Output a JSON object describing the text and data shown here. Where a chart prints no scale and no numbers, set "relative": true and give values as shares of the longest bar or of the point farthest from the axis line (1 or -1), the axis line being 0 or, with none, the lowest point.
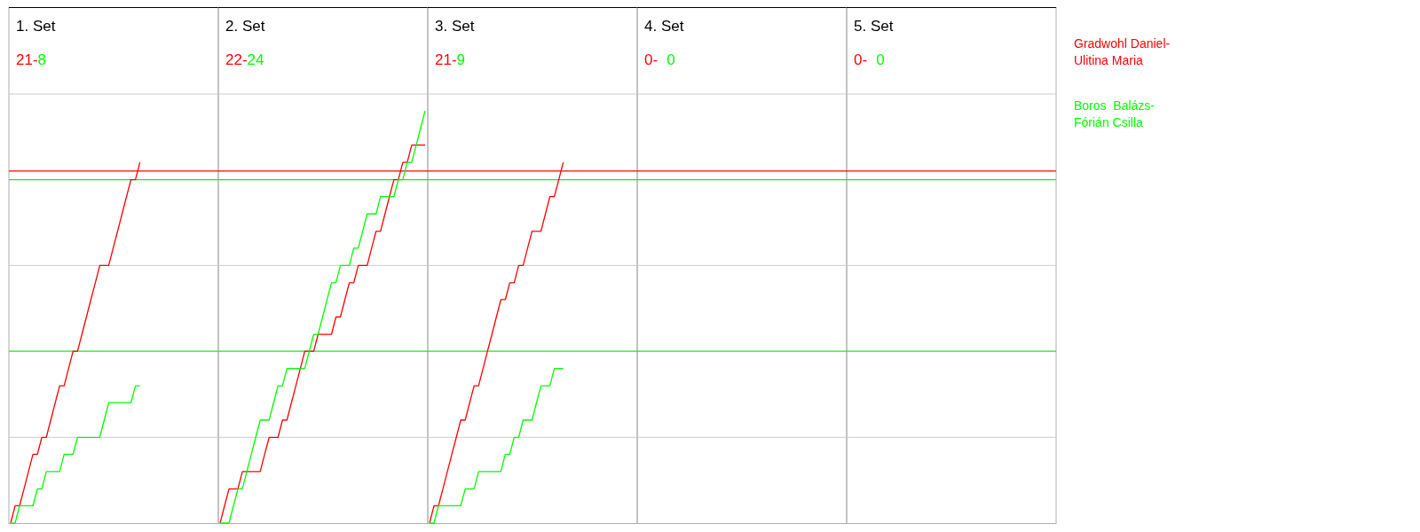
{
  "chart_data": {
    "type": "line",
    "relative": true,
    "annotations": [
      "1. Set",
      "21-",
      "8",
      "2. Set",
      "22-",
      "24",
      "3. Set",
      "21-",
      "9",
      "4. Set",
      "0-",
      "0",
      "5. Set",
      "0-",
      "0"
    ],
    "categories": [
      null,
      null,
      null,
      null,
      null,
      null,
      null,
      null,
      null,
      null,
      null,
      null,
      null,
      null,
      null,
      null,
      null,
      null,
      null,
      null,
      null,
      null,
      null,
      null,
      null,
      null,
      null,
      null,
      null,
      null,
      null,
      null,
      null,
      null,
      null,
      null,
      null,
      null,
      null,
      null,
      null,
      null,
      null,
      null,
      null,
      null,
      null,
      null,
      null,
      null,
      null,
      null,
      null,
      null,
      null,
      null,
      null,
      null,
      null,
      null,
      null,
      null,
      null,
      null,
      null,
      null,
      null,
      null,
      null,
      null,
      null,
      null,
      null,
      null,
      null,
      null,
      null,
      null,
      null,
      null,
      null,
      null,
      null,
      null,
      null,
      null,
      null,
      null,
      null,
      null,
      null,
      null,
      null,
      null,
      null,
      null,
      null,
      null,
      null,
      null,
      null,
      null,
      null,
      null,
      null,
      null,
      null,
      null,
      null,
      null,
      null,
      null,
      null,
      null,
      null,
      null,
      null,
      null,
      null,
      null,
      null,
      null,
      null,
      null,
      null,
      null,
      null,
      null,
      null,
      null,
      null,
      null,
      null,
      null,
      null,
      null,
      null,
      null,
      null,
      null,
      null,
      null,
      null,
      null,
      null,
      null,
      null,
      null,
      null,
      null,
      null,
      null,
      null,
      null,
      null,
      null,
      null,
      null,
      null,
      null,
      null,
      null,
      null,
      null,
      null,
      null,
      null,
      null,
      null,
      null,
      null,
      null,
      null,
      null,
      null,
      null,
      null,
      null,
      null,
      null,
      null,
      null,
      null,
      null,
      null,
      null,
      null,
      null,
      null,
      null,
      null,
      null,
      null,
      null,
      null,
      null,
      null,
      null,
      null,
      null,
      null,
      null,
      null,
      null,
      null,
      null,
      null,
      null,
      null,
      null,
      null,
      null,
      null,
      null,
      null,
      null,
      null,
      null,
      null,
      null,
      null,
      null,
      null,
      null,
      null,
      null,
      null,
      null,
      null,
      null,
      null,
      null,
      null,
      null,
      null
    ],
    "ref_lines": [
      {
        "axis": "y",
        "value": 0.208,
        "color": "#cccccc"
      },
      {
        "axis": "y",
        "value": 0.625,
        "color": "#cccccc"
      },
      {
        "axis": "y",
        "value": 0.854,
        "color": "#ff0000"
      },
      {
        "axis": "y",
        "value": 0.833,
        "color": "#00ff00"
      },
      {
        "axis": "y",
        "value": 0.417,
        "color": "#00ff00"
      }
    ],
    "series": [
      {
        "name": "Gradwohl Daniel-Ulitina Maria",
        "color": "#ff0000",
        "values": [
          0,
          0.042,
          0.042,
          0.083,
          0.125,
          0.167,
          0.167,
          0.208,
          0.208,
          0.25,
          0.292,
          0.333,
          0.333,
          0.375,
          0.417,
          0.417,
          0.458,
          0.5,
          0.542,
          0.583,
          0.625,
          0.625,
          0.625,
          0.667,
          0.708,
          0.75,
          0.792,
          0.833,
          0.833,
          0.875,
          null,
          null,
          null,
          null,
          null,
          null,
          null,
          null,
          null,
          null,
          null,
          null,
          null,
          null,
          null,
          null,
          null,
          null,
          null,
          null,
          null,
          null,
          null,
          null,
          null,
          null,
          null,
          null,
          null,
          null,
          null,
          null,
          null,
          null,
          null,
          null,
          null,
          null,
          null,
          null,
          null,
          null,
          null,
          null,
          null,
          null,
          null,
          null,
          null,
          null,
          null,
          null,
          null,
          null,
          null,
          null,
          null,
          null,
          null,
          null,
          null,
          null,
          null,
          null,
          null,
          null,
          null,
          null,
          null,
          null,
          null,
          null,
          null,
          null,
          null,
          null,
          null,
          null,
          null,
          null,
          null,
          null,
          null,
          null,
          null,
          null,
          null,
          null,
          null,
          null,
          null,
          null,
          null,
          null,
          null,
          null,
          null,
          null,
          null,
          null,
          null,
          null,
          null,
          null,
          null,
          null,
          null,
          null,
          null,
          null,
          null,
          null,
          null,
          null,
          null,
          null,
          null,
          null,
          null,
          null,
          null,
          null,
          null,
          null,
          null,
          null,
          null,
          null,
          null,
          null,
          null,
          null,
          null,
          null,
          null,
          null,
          null,
          null,
          null,
          null,
          null,
          null,
          null,
          null,
          null,
          null,
          null,
          null,
          null,
          null,
          null,
          null,
          null,
          null,
          null,
          null,
          null,
          null,
          null,
          null,
          null,
          null,
          null,
          null,
          null,
          null,
          null,
          null,
          null,
          null,
          null,
          null,
          null,
          null,
          null,
          null,
          null,
          null,
          null,
          null,
          null,
          null,
          null,
          null,
          null,
          null,
          null,
          null,
          null,
          null,
          null,
          null,
          null,
          null,
          null,
          null,
          null,
          null,
          null,
          null,
          null,
          null,
          null,
          null,
          null
        ]
      },
      {
        "name": "Boros  Balázs-Fórián Csilla",
        "color": "#00ff00",
        "values": [
          0,
          0,
          0.042,
          0.042,
          0.042,
          0.042,
          0.083,
          0.083,
          0.125,
          0.125,
          0.125,
          0.125,
          0.167,
          0.167,
          0.167,
          0.208,
          0.208,
          0.208,
          0.208,
          0.208,
          0.208,
          0.25,
          0.292,
          0.292,
          0.292,
          0.292,
          0.292,
          0.292,
          0.333,
          0.333,
          null,
          null,
          null,
          null,
          null,
          null,
          null,
          null,
          null,
          null,
          null,
          null,
          null,
          null,
          null,
          null,
          null,
          null,
          null,
          null,
          null,
          null,
          null,
          null,
          null,
          null,
          null,
          null,
          null,
          null,
          null,
          null,
          null,
          null,
          null,
          null,
          null,
          null,
          null,
          null,
          null,
          null,
          null,
          null,
          null,
          null,
          null,
          null,
          null,
          null,
          null,
          null,
          null,
          null,
          null,
          null,
          null,
          null,
          null,
          null,
          null,
          null,
          null,
          null,
          null,
          null,
          null,
          null,
          null,
          null,
          null,
          null,
          null,
          null,
          null,
          null,
          null,
          null,
          null,
          null,
          null,
          null,
          null,
          null,
          null,
          null,
          null,
          null,
          null,
          null,
          null,
          null,
          null,
          null,
          null,
          null,
          null,
          null,
          null,
          null,
          null,
          null,
          null,
          null,
          null,
          null,
          null,
          null,
          null,
          null,
          null,
          null,
          null,
          null,
          null,
          null,
          null,
          null,
          null,
          null,
          null,
          null,
          null,
          null,
          null,
          null,
          null,
          null,
          null,
          null,
          null,
          null,
          null,
          null,
          null,
          null,
          null,
          null,
          null,
          null,
          null,
          null,
          null,
          null,
          null,
          null,
          null,
          null,
          null,
          null,
          null,
          null,
          null,
          null,
          null,
          null,
          null,
          null,
          null,
          null,
          null,
          null,
          null,
          null,
          null,
          null,
          null,
          null,
          null,
          null,
          null,
          null,
          null,
          null,
          null,
          null,
          null,
          null,
          null,
          null,
          null,
          null,
          null,
          null,
          null,
          null,
          null,
          null,
          null,
          null,
          null,
          null,
          null,
          null,
          null,
          null,
          null,
          null,
          null,
          null,
          null,
          null,
          null,
          null,
          null
        ]
      },
      {
        "color": "#ff0000",
        "values": [
          null,
          null,
          null,
          null,
          null,
          null,
          null,
          null,
          null,
          null,
          null,
          null,
          null,
          null,
          null,
          null,
          null,
          null,
          null,
          null,
          null,
          null,
          null,
          null,
          null,
          null,
          null,
          null,
          null,
          null,
          null,
          null,
          null,
          null,
          null,
          null,
          null,
          null,
          null,
          null,
          null,
          null,
          null,
          null,
          null,
          null,
          null,
          0,
          0.042,
          0.083,
          0.083,
          0.083,
          0.125,
          0.125,
          0.125,
          0.125,
          0.125,
          0.167,
          0.208,
          0.208,
          0.208,
          0.25,
          0.25,
          0.292,
          0.333,
          0.375,
          0.417,
          0.417,
          0.417,
          0.458,
          0.458,
          0.458,
          0.458,
          0.5,
          0.5,
          0.542,
          0.583,
          0.583,
          0.625,
          0.625,
          0.625,
          0.667,
          0.708,
          0.708,
          0.75,
          0.792,
          0.833,
          0.833,
          0.875,
          0.875,
          0.917,
          0.917,
          0.917,
          0.917,
          null,
          null,
          null,
          null,
          null,
          null,
          null,
          null,
          null,
          null,
          null,
          null,
          null,
          null,
          null,
          null,
          null,
          null,
          null,
          null,
          null,
          null,
          null,
          null,
          null,
          null,
          null,
          null,
          null,
          null,
          null,
          null,
          null,
          null,
          null,
          null,
          null,
          null,
          null,
          null,
          null,
          null,
          null,
          null,
          null,
          null,
          null,
          null,
          null,
          null,
          null,
          null,
          null,
          null,
          null,
          null,
          null,
          null,
          null,
          null,
          null,
          null,
          null,
          null,
          null,
          null,
          null,
          null,
          null,
          null,
          null,
          null,
          null,
          null,
          null,
          null,
          null,
          null,
          null,
          null,
          null,
          null,
          null,
          null,
          null,
          null,
          null,
          null,
          null,
          null,
          null,
          null,
          null,
          null,
          null,
          null,
          null,
          null,
          null,
          null,
          null,
          null,
          null,
          null,
          null,
          null,
          null,
          null,
          null,
          null,
          null,
          null,
          null,
          null,
          null,
          null,
          null,
          null,
          null,
          null,
          null,
          null,
          null,
          null,
          null,
          null,
          null,
          null,
          null,
          null,
          null,
          null,
          null,
          null,
          null,
          null,
          null,
          null,
          null,
          null,
          null
        ]
      },
      {
        "color": "#00ff00",
        "values": [
          null,
          null,
          null,
          null,
          null,
          null,
          null,
          null,
          null,
          null,
          null,
          null,
          null,
          null,
          null,
          null,
          null,
          null,
          null,
          null,
          null,
          null,
          null,
          null,
          null,
          null,
          null,
          null,
          null,
          null,
          null,
          null,
          null,
          null,
          null,
          null,
          null,
          null,
          null,
          null,
          null,
          null,
          null,
          null,
          null,
          null,
          null,
          0,
          0,
          0,
          0.042,
          0.083,
          0.083,
          0.125,
          0.167,
          0.208,
          0.25,
          0.25,
          0.25,
          0.292,
          0.333,
          0.333,
          0.375,
          0.375,
          0.375,
          0.375,
          0.375,
          0.417,
          0.458,
          0.458,
          0.5,
          0.542,
          0.583,
          0.583,
          0.625,
          0.625,
          0.625,
          0.667,
          0.667,
          0.708,
          0.75,
          0.75,
          0.75,
          0.792,
          0.792,
          0.792,
          0.792,
          0.833,
          0.833,
          0.875,
          0.875,
          0.917,
          0.958,
          1,
          null,
          null,
          null,
          null,
          null,
          null,
          null,
          null,
          null,
          null,
          null,
          null,
          null,
          null,
          null,
          null,
          null,
          null,
          null,
          null,
          null,
          null,
          null,
          null,
          null,
          null,
          null,
          null,
          null,
          null,
          null,
          null,
          null,
          null,
          null,
          null,
          null,
          null,
          null,
          null,
          null,
          null,
          null,
          null,
          null,
          null,
          null,
          null,
          null,
          null,
          null,
          null,
          null,
          null,
          null,
          null,
          null,
          null,
          null,
          null,
          null,
          null,
          null,
          null,
          null,
          null,
          null,
          null,
          null,
          null,
          null,
          null,
          null,
          null,
          null,
          null,
          null,
          null,
          null,
          null,
          null,
          null,
          null,
          null,
          null,
          null,
          null,
          null,
          null,
          null,
          null,
          null,
          null,
          null,
          null,
          null,
          null,
          null,
          null,
          null,
          null,
          null,
          null,
          null,
          null,
          null,
          null,
          null,
          null,
          null,
          null,
          null,
          null,
          null,
          null,
          null,
          null,
          null,
          null,
          null,
          null,
          null,
          null,
          null,
          null,
          null,
          null,
          null,
          null,
          null,
          null,
          null,
          null,
          null,
          null,
          null,
          null,
          null,
          null,
          null,
          null
        ]
      },
      {
        "color": "#ff0000",
        "values": [
          null,
          null,
          null,
          null,
          null,
          null,
          null,
          null,
          null,
          null,
          null,
          null,
          null,
          null,
          null,
          null,
          null,
          null,
          null,
          null,
          null,
          null,
          null,
          null,
          null,
          null,
          null,
          null,
          null,
          null,
          null,
          null,
          null,
          null,
          null,
          null,
          null,
          null,
          null,
          null,
          null,
          null,
          null,
          null,
          null,
          null,
          null,
          null,
          null,
          null,
          null,
          null,
          null,
          null,
          null,
          null,
          null,
          null,
          null,
          null,
          null,
          null,
          null,
          null,
          null,
          null,
          null,
          null,
          null,
          null,
          null,
          null,
          null,
          null,
          null,
          null,
          null,
          null,
          null,
          null,
          null,
          null,
          null,
          null,
          null,
          null,
          null,
          null,
          null,
          null,
          null,
          null,
          null,
          null,
          0,
          0.042,
          0.042,
          0.083,
          0.125,
          0.167,
          0.208,
          0.25,
          0.25,
          0.292,
          0.333,
          0.333,
          0.375,
          0.417,
          0.458,
          0.5,
          0.542,
          0.542,
          0.583,
          0.583,
          0.625,
          0.625,
          0.667,
          0.708,
          0.708,
          0.708,
          0.75,
          0.792,
          0.792,
          0.833,
          0.875,
          null,
          null,
          null,
          null,
          null,
          null,
          null,
          null,
          null,
          null,
          null,
          null,
          null,
          null,
          null,
          null,
          null,
          null,
          null,
          null,
          null,
          null,
          null,
          null,
          null,
          null,
          null,
          null,
          null,
          null,
          null,
          null,
          null,
          null,
          null,
          null,
          null,
          null,
          null,
          null,
          null,
          null,
          null,
          null,
          null,
          null,
          null,
          null,
          null,
          null,
          null,
          null,
          null,
          null,
          null,
          null,
          null,
          null,
          null,
          null,
          null,
          null,
          null,
          null,
          null,
          null,
          null,
          null,
          null,
          null,
          null,
          null,
          null,
          null,
          null,
          null,
          null,
          null,
          null,
          null,
          null,
          null,
          null,
          null,
          null,
          null,
          null,
          null,
          null,
          null,
          null,
          null,
          null,
          null,
          null,
          null,
          null,
          null,
          null,
          null,
          null,
          null,
          null,
          null,
          null,
          null,
          null,
          null,
          null,
          null
        ]
      },
      {
        "color": "#00ff00",
        "values": [
          null,
          null,
          null,
          null,
          null,
          null,
          null,
          null,
          null,
          null,
          null,
          null,
          null,
          null,
          null,
          null,
          null,
          null,
          null,
          null,
          null,
          null,
          null,
          null,
          null,
          null,
          null,
          null,
          null,
          null,
          null,
          null,
          null,
          null,
          null,
          null,
          null,
          null,
          null,
          null,
          null,
          null,
          null,
          null,
          null,
          null,
          null,
          null,
          null,
          null,
          null,
          null,
          null,
          null,
          null,
          null,
          null,
          null,
          null,
          null,
          null,
          null,
          null,
          null,
          null,
          null,
          null,
          null,
          null,
          null,
          null,
          null,
          null,
          null,
          null,
          null,
          null,
          null,
          null,
          null,
          null,
          null,
          null,
          null,
          null,
          null,
          null,
          null,
          null,
          null,
          null,
          null,
          null,
          null,
          0,
          0,
          0.042,
          0.042,
          0.042,
          0.042,
          0.042,
          0.042,
          0.083,
          0.083,
          0.083,
          0.125,
          0.125,
          0.125,
          0.125,
          0.125,
          0.125,
          0.167,
          0.167,
          0.208,
          0.208,
          0.25,
          0.25,
          0.25,
          0.292,
          0.333,
          0.333,
          0.333,
          0.375,
          0.375,
          0.375,
          null,
          null,
          null,
          null,
          null,
          null,
          null,
          null,
          null,
          null,
          null,
          null,
          null,
          null,
          null,
          null,
          null,
          null,
          null,
          null,
          null,
          null,
          null,
          null,
          null,
          null,
          null,
          null,
          null,
          null,
          null,
          null,
          null,
          null,
          null,
          null,
          null,
          null,
          null,
          null,
          null,
          null,
          null,
          null,
          null,
          null,
          null,
          null,
          null,
          null,
          null,
          null,
          null,
          null,
          null,
          null,
          null,
          null,
          null,
          null,
          null,
          null,
          null,
          null,
          null,
          null,
          null,
          null,
          null,
          null,
          null,
          null,
          null,
          null,
          null,
          null,
          null,
          null,
          null,
          null,
          null,
          null,
          null,
          null,
          null,
          null,
          null,
          null,
          null,
          null,
          null,
          null,
          null,
          null,
          null,
          null,
          null,
          null,
          null,
          null,
          null,
          null,
          null,
          null,
          null,
          null,
          null,
          null,
          null,
          null
        ]
      }
    ]
  }
}
